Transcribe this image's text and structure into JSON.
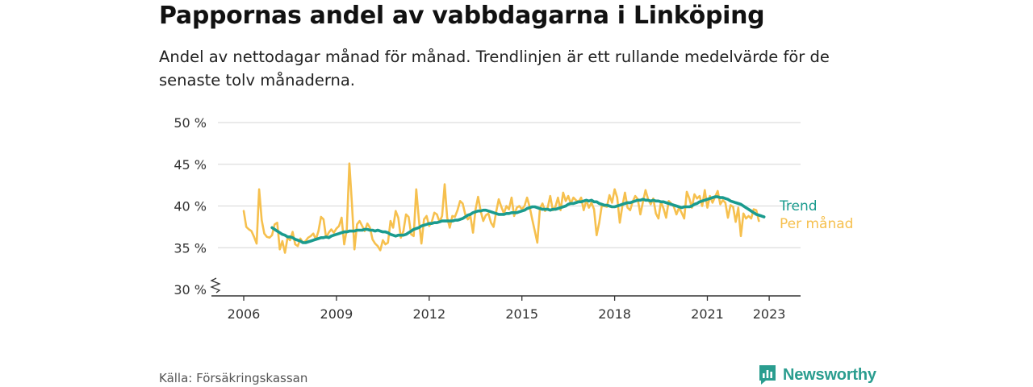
{
  "title": "Pappornas andel av vabbdagarna i Linköping",
  "subtitle": "Andel av nettodagar månad för månad. Trendlinjen är ett rullande medelvärde för de senaste tolv månaderna.",
  "source": "Källa: Försäkringskassan",
  "brand": "Newsworthy",
  "colors": {
    "monthly": "#f6c04e",
    "trend": "#1a9b8e",
    "grid": "#d6d6d6",
    "axis": "#333333",
    "brand": "#2a9d8f"
  },
  "chart_data": {
    "type": "line",
    "x_unit": "month",
    "ylim": [
      30,
      50
    ],
    "y_ticks": [
      30,
      35,
      40,
      45,
      50
    ],
    "y_tick_labels": [
      "30 %",
      "35 %",
      "40 %",
      "45 %",
      "50 %"
    ],
    "y_axis_break": true,
    "x_ticks": [
      "2006",
      "2009",
      "2012",
      "2015",
      "2018",
      "2021",
      "2023"
    ],
    "grid": "horizontal",
    "legend": "inline labels at line ends",
    "series": [
      {
        "name": "Per månad",
        "start": "2006-01",
        "values": [
          39.4,
          37.5,
          37.2,
          37.0,
          36.3,
          35.5,
          42.0,
          38.3,
          36.7,
          36.3,
          36.2,
          36.5,
          37.8,
          38.0,
          34.8,
          35.8,
          34.4,
          36.2,
          35.9,
          36.9,
          35.4,
          35.2,
          36.1,
          35.6,
          35.8,
          36.2,
          36.4,
          36.7,
          36.0,
          37.0,
          38.7,
          38.4,
          36.2,
          36.8,
          37.2,
          36.8,
          37.3,
          37.6,
          38.6,
          35.4,
          37.2,
          45.1,
          40.4,
          34.8,
          37.8,
          38.2,
          37.6,
          37.0,
          37.9,
          37.4,
          36.0,
          35.5,
          35.2,
          34.7,
          35.9,
          35.4,
          35.6,
          38.2,
          37.4,
          39.4,
          38.6,
          36.2,
          37.0,
          39.0,
          38.7,
          36.6,
          36.4,
          42.0,
          38.4,
          35.5,
          38.4,
          38.8,
          37.6,
          38.1,
          39.2,
          39.0,
          38.1,
          38.8,
          42.6,
          38.6,
          37.4,
          38.8,
          38.7,
          39.5,
          40.6,
          40.3,
          39.0,
          38.4,
          38.8,
          36.8,
          39.6,
          41.1,
          39.4,
          38.2,
          38.9,
          39.1,
          38.0,
          37.5,
          39.3,
          40.8,
          39.9,
          39.1,
          40.0,
          39.6,
          41.0,
          38.8,
          39.8,
          40.0,
          39.6,
          40.0,
          41.0,
          39.9,
          38.4,
          37.0,
          35.6,
          39.7,
          40.3,
          39.4,
          39.8,
          41.2,
          39.5,
          39.9,
          41.0,
          39.5,
          41.6,
          40.6,
          41.2,
          40.3,
          41.0,
          40.7,
          40.5,
          41.0,
          39.5,
          40.7,
          39.8,
          40.4,
          39.6,
          36.5,
          38.0,
          40.0,
          40.0,
          39.9,
          41.3,
          40.4,
          42.0,
          41.0,
          38.0,
          40.0,
          41.6,
          39.8,
          39.5,
          40.5,
          41.2,
          40.8,
          39.0,
          40.5,
          41.9,
          40.8,
          40.2,
          40.9,
          39.1,
          38.5,
          40.5,
          39.7,
          38.6,
          40.6,
          40.3,
          39.9,
          39.0,
          39.8,
          39.2,
          38.5,
          41.7,
          40.9,
          39.8,
          41.4,
          40.9,
          41.2,
          40.0,
          41.9,
          39.8,
          41.2,
          40.4,
          41.1,
          41.8,
          40.2,
          40.7,
          40.4,
          38.6,
          40.1,
          39.9,
          38.1,
          39.8,
          36.4,
          39.1,
          38.5,
          38.8,
          38.5,
          39.6,
          39.5,
          38.2
        ]
      },
      {
        "name": "Trend",
        "start": "2006-12",
        "values": [
          37.4,
          37.2,
          37.0,
          36.8,
          36.6,
          36.5,
          36.3,
          36.3,
          36.2,
          36.0,
          35.9,
          35.8,
          35.6,
          35.6,
          35.7,
          35.8,
          35.9,
          36.0,
          36.1,
          36.2,
          36.2,
          36.3,
          36.2,
          36.4,
          36.5,
          36.6,
          36.7,
          36.8,
          36.9,
          36.9,
          37.0,
          37.0,
          37.0,
          37.1,
          37.1,
          37.1,
          37.2,
          37.2,
          37.1,
          37.1,
          37.0,
          37.1,
          37.0,
          36.9,
          36.9,
          36.8,
          36.6,
          36.5,
          36.4,
          36.5,
          36.5,
          36.5,
          36.6,
          36.8,
          37.0,
          37.2,
          37.3,
          37.4,
          37.6,
          37.7,
          37.8,
          37.9,
          37.9,
          38.0,
          38.0,
          38.1,
          38.2,
          38.2,
          38.2,
          38.2,
          38.2,
          38.3,
          38.3,
          38.4,
          38.5,
          38.7,
          38.9,
          39.0,
          39.2,
          39.3,
          39.4,
          39.4,
          39.5,
          39.5,
          39.4,
          39.3,
          39.2,
          39.1,
          39.0,
          39.0,
          39.0,
          39.1,
          39.1,
          39.2,
          39.2,
          39.2,
          39.3,
          39.4,
          39.5,
          39.7,
          39.8,
          39.9,
          39.9,
          39.8,
          39.7,
          39.6,
          39.6,
          39.6,
          39.5,
          39.6,
          39.6,
          39.7,
          39.8,
          39.9,
          40.0,
          40.2,
          40.3,
          40.3,
          40.4,
          40.5,
          40.5,
          40.6,
          40.7,
          40.6,
          40.7,
          40.5,
          40.5,
          40.3,
          40.2,
          40.1,
          40.1,
          40.0,
          39.9,
          39.9,
          40.0,
          40.1,
          40.2,
          40.3,
          40.4,
          40.4,
          40.5,
          40.6,
          40.7,
          40.7,
          40.8,
          40.7,
          40.7,
          40.6,
          40.7,
          40.6,
          40.6,
          40.5,
          40.5,
          40.4,
          40.3,
          40.2,
          40.1,
          40.0,
          39.9,
          39.8,
          39.9,
          39.9,
          39.9,
          40.0,
          40.2,
          40.3,
          40.5,
          40.6,
          40.7,
          40.8,
          40.9,
          41.0,
          41.1,
          41.1,
          41.0,
          41.0,
          40.9,
          40.8,
          40.6,
          40.5,
          40.4,
          40.3,
          40.2,
          40.0,
          39.8,
          39.6,
          39.4,
          39.2,
          39.0,
          38.9,
          38.8,
          38.7
        ]
      }
    ]
  }
}
